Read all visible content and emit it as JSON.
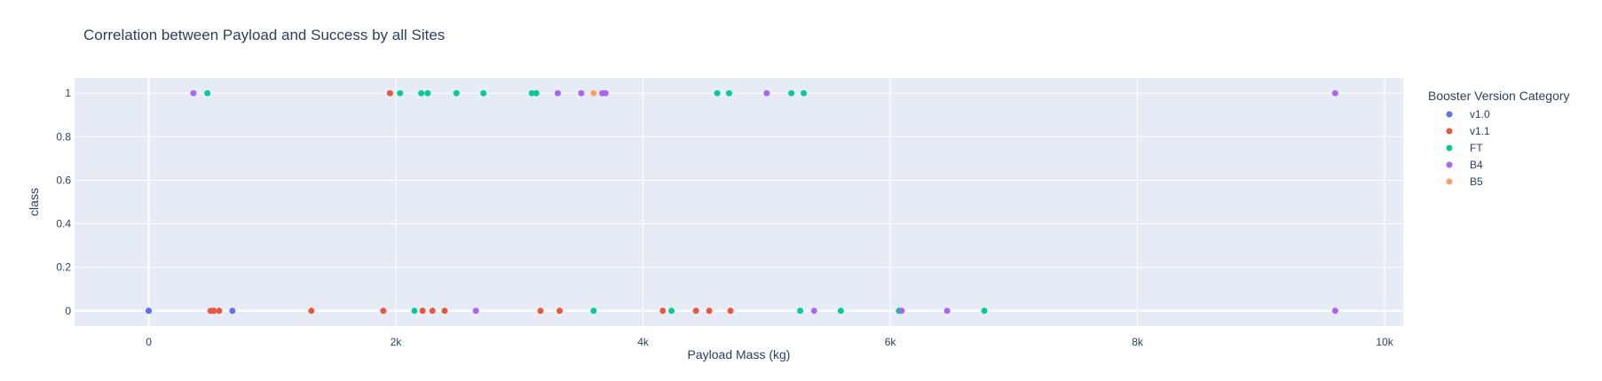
{
  "chart_data": {
    "type": "scatter",
    "title": "Correlation between Payload and Success by all Sites",
    "xlabel": "Payload Mass (kg)",
    "ylabel": "class",
    "xlim": [
      -600,
      10150
    ],
    "ylim": [
      -0.07,
      1.07
    ],
    "x_ticks": [
      {
        "value": 0,
        "label": "0"
      },
      {
        "value": 2000,
        "label": "2k"
      },
      {
        "value": 4000,
        "label": "4k"
      },
      {
        "value": 6000,
        "label": "6k"
      },
      {
        "value": 8000,
        "label": "8k"
      },
      {
        "value": 10000,
        "label": "10k"
      }
    ],
    "y_ticks": [
      {
        "value": 0,
        "label": "0"
      },
      {
        "value": 0.2,
        "label": "0.2"
      },
      {
        "value": 0.4,
        "label": "0.4"
      },
      {
        "value": 0.6,
        "label": "0.6"
      },
      {
        "value": 0.8,
        "label": "0.8"
      },
      {
        "value": 1,
        "label": "1"
      }
    ],
    "grid": true,
    "legend_title": "Booster Version Category",
    "legend_position": "top-right",
    "series": [
      {
        "name": "v1.0",
        "color": "#636efa",
        "x": [
          0,
          0,
          525,
          677
        ],
        "y": [
          0,
          0,
          0,
          0
        ]
      },
      {
        "name": "v1.1",
        "color": "#ef553b",
        "x": [
          500,
          525,
          570,
          1316,
          1898,
          1952,
          2216,
          2296,
          2395,
          3170,
          3325,
          4159,
          4428,
          4535,
          4707
        ],
        "y": [
          0,
          0,
          0,
          0,
          0,
          1,
          0,
          0,
          0,
          0,
          0,
          0,
          0,
          0,
          0
        ]
      },
      {
        "name": "FT",
        "color": "#00cc96",
        "x": [
          475,
          2034,
          2150,
          2205,
          2257,
          2490,
          2708,
          3100,
          3136,
          3600,
          4230,
          4600,
          4696,
          5200,
          5271,
          5300,
          5600,
          6070,
          6761
        ],
        "y": [
          1,
          1,
          0,
          1,
          1,
          1,
          1,
          1,
          1,
          0,
          0,
          1,
          1,
          1,
          0,
          1,
          0,
          0,
          0
        ]
      },
      {
        "name": "B4",
        "color": "#ab63fa",
        "x": [
          362,
          2647,
          3310,
          3500,
          3669,
          3696,
          5000,
          5384,
          6092,
          6460,
          9600,
          9600
        ],
        "y": [
          1,
          0,
          1,
          1,
          1,
          1,
          1,
          0,
          0,
          0,
          1,
          0
        ]
      },
      {
        "name": "B5",
        "color": "#ffa15a",
        "x": [
          3600
        ],
        "y": [
          1
        ]
      }
    ]
  }
}
